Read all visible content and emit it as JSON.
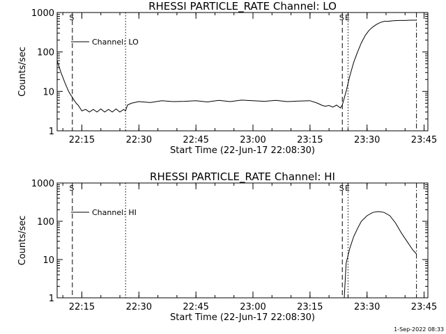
{
  "footer_timestamp": "1-Sep-2022 08:33",
  "chart_data": [
    {
      "type": "line",
      "title": "RHESSI PARTICLE_RATE Channel: LO",
      "xlabel": "Start Time (22-Jun-17 22:08:30)",
      "ylabel": "Counts/sec",
      "yscale": "log",
      "ylim": [
        1,
        1000
      ],
      "xlim": [
        "22:08:30",
        "23:46:00"
      ],
      "yticks": [
        "1",
        "10",
        "100",
        "1000"
      ],
      "xticks": [
        "22:15",
        "22:30",
        "22:45",
        "23:00",
        "23:15",
        "23:30",
        "23:45"
      ],
      "legend": {
        "placement": "top-left",
        "entries": [
          "Channel: LO"
        ]
      },
      "markers": [
        {
          "time": "22:12:30",
          "style": "dashed",
          "label": "S"
        },
        {
          "time": "22:26:30",
          "style": "dotted",
          "label": ""
        },
        {
          "time": "23:23:30",
          "style": "dashed",
          "label": "S"
        },
        {
          "time": "23:25:00",
          "style": "dotted",
          "label": "E"
        },
        {
          "time": "23:43:00",
          "style": "dashdot",
          "label": ""
        }
      ],
      "series": [
        {
          "name": "Channel: LO",
          "x": [
            "22:08:30",
            "22:09:30",
            "22:10:30",
            "22:11:30",
            "22:12:30",
            "22:13:30",
            "22:14:00",
            "22:15:00",
            "22:16:00",
            "22:17:00",
            "22:18:00",
            "22:19:00",
            "22:20:00",
            "22:21:00",
            "22:22:00",
            "22:23:00",
            "22:24:00",
            "22:25:00",
            "22:26:00",
            "22:26:30",
            "22:27:00",
            "22:28:00",
            "22:30:00",
            "22:33:00",
            "22:36:00",
            "22:39:00",
            "22:42:00",
            "22:45:00",
            "22:48:00",
            "22:51:00",
            "22:54:00",
            "22:57:00",
            "23:00:00",
            "23:03:00",
            "23:06:00",
            "23:09:00",
            "23:12:00",
            "23:15:00",
            "23:17:00",
            "23:18:00",
            "23:19:00",
            "23:20:00",
            "23:21:00",
            "23:22:00",
            "23:23:00",
            "23:23:30",
            "23:24:30",
            "23:25:30",
            "23:26:30",
            "23:27:30",
            "23:28:30",
            "23:29:30",
            "23:30:30",
            "23:31:30",
            "23:32:30",
            "23:33:30",
            "23:34:30",
            "23:35:30",
            "23:37:00",
            "23:38:30",
            "23:40:00",
            "23:41:30",
            "23:43:00"
          ],
          "values": [
            60,
            30,
            17,
            10,
            7,
            5,
            4.5,
            3.2,
            3.5,
            3.0,
            3.5,
            3.0,
            3.6,
            3.0,
            3.5,
            3.0,
            3.6,
            3.0,
            3.5,
            3.2,
            4.5,
            5.0,
            5.5,
            5.2,
            5.8,
            5.5,
            5.6,
            5.8,
            5.4,
            5.9,
            5.5,
            6.0,
            5.8,
            5.6,
            5.9,
            5.5,
            5.7,
            5.8,
            5.0,
            4.5,
            4.2,
            4.4,
            4.0,
            4.5,
            3.8,
            4.5,
            10,
            25,
            55,
            100,
            170,
            260,
            350,
            430,
            500,
            560,
            600,
            600,
            620,
            630,
            630,
            640,
            640
          ]
        }
      ]
    },
    {
      "type": "line",
      "title": "RHESSI PARTICLE_RATE Channel: HI",
      "xlabel": "Start Time (22-Jun-17 22:08:30)",
      "ylabel": "Counts/sec",
      "yscale": "log",
      "ylim": [
        1,
        1000
      ],
      "xlim": [
        "22:08:30",
        "23:46:00"
      ],
      "yticks": [
        "1",
        "10",
        "100",
        "1000"
      ],
      "xticks": [
        "22:15",
        "22:30",
        "22:45",
        "23:00",
        "23:15",
        "23:30",
        "23:45"
      ],
      "legend": {
        "placement": "top-left",
        "entries": [
          "Channel: HI"
        ]
      },
      "markers": [
        {
          "time": "22:12:30",
          "style": "dashed",
          "label": "S"
        },
        {
          "time": "22:26:30",
          "style": "dotted",
          "label": ""
        },
        {
          "time": "23:23:30",
          "style": "dashed",
          "label": "S"
        },
        {
          "time": "23:25:00",
          "style": "dotted",
          "label": "E"
        },
        {
          "time": "23:43:00",
          "style": "dashdot",
          "label": ""
        }
      ],
      "series": [
        {
          "name": "Channel: HI",
          "x": [
            "23:24:00",
            "23:24:30",
            "23:25:30",
            "23:26:30",
            "23:27:30",
            "23:28:30",
            "23:30:00",
            "23:31:30",
            "23:33:00",
            "23:34:30",
            "23:36:00",
            "23:37:30",
            "23:39:00",
            "23:40:30",
            "23:42:00",
            "23:43:00"
          ],
          "values": [
            1,
            8,
            20,
            40,
            65,
            100,
            140,
            170,
            180,
            170,
            140,
            90,
            50,
            30,
            18,
            14
          ]
        }
      ]
    }
  ]
}
